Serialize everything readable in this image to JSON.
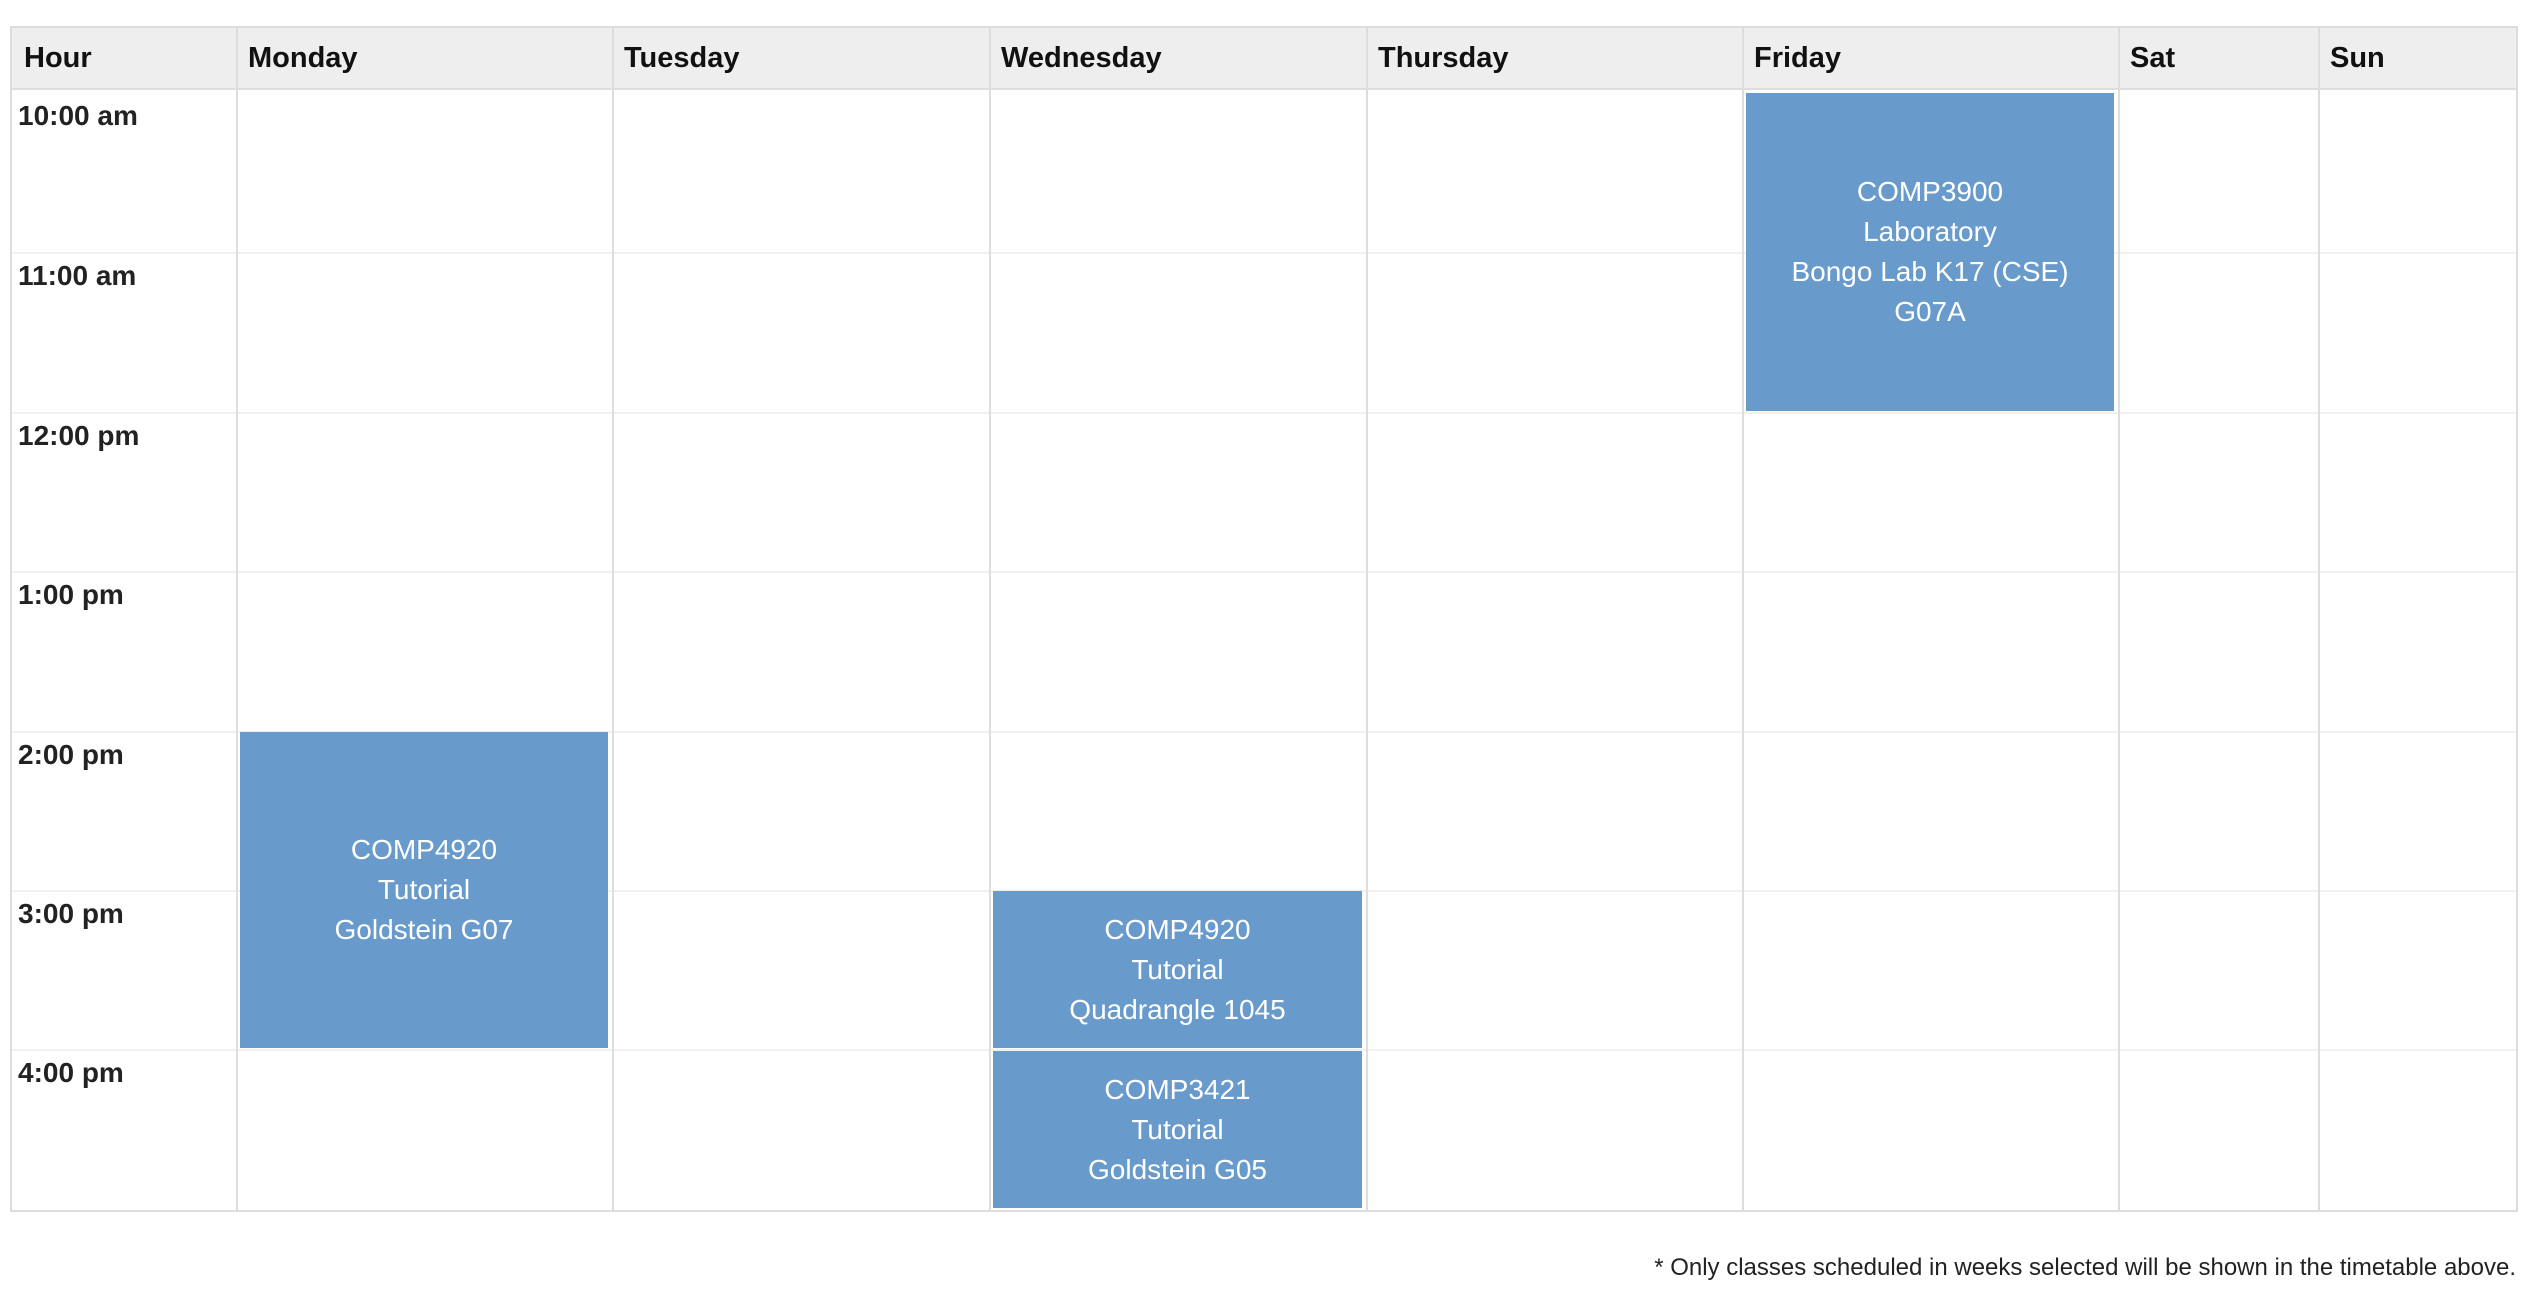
{
  "header": {
    "hour": "Hour",
    "days": [
      "Monday",
      "Tuesday",
      "Wednesday",
      "Thursday",
      "Friday",
      "Sat",
      "Sun"
    ]
  },
  "hours": [
    "10:00 am",
    "11:00 am",
    "12:00 pm",
    "1:00 pm",
    "2:00 pm",
    "3:00 pm",
    "4:00 pm"
  ],
  "events": {
    "friday_lab": {
      "course": "COMP3900",
      "type": "Laboratory",
      "location": "Bongo Lab K17 (CSE)",
      "room": "G07A"
    },
    "monday_tut": {
      "course": "COMP4920",
      "type": "Tutorial",
      "location": "Goldstein G07"
    },
    "wednesday_tut1": {
      "course": "COMP4920",
      "type": "Tutorial",
      "location": "Quadrangle 1045"
    },
    "wednesday_tut2": {
      "course": "COMP3421",
      "type": "Tutorial",
      "location": "Goldstein G05"
    }
  },
  "footnote": "* Only classes scheduled in weeks selected will be shown in the timetable above.",
  "colors": {
    "event_bg": "#689bcb",
    "header_bg": "#eeeeee",
    "border": "#dddddd"
  }
}
